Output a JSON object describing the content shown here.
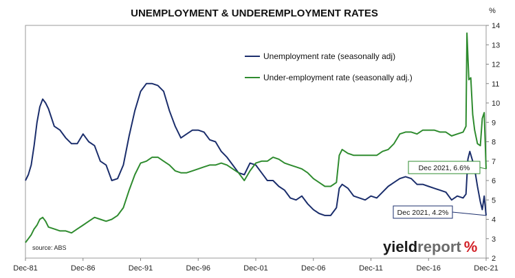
{
  "chart_data": {
    "type": "line",
    "title": "UNEMPLOYMENT & UNDEREMPLOYMENT RATES",
    "y_unit_label": "%",
    "y_axis_side": "right",
    "ylim": [
      2,
      14
    ],
    "y_ticks": [
      2,
      3,
      4,
      5,
      6,
      7,
      8,
      9,
      10,
      11,
      12,
      13,
      14
    ],
    "xlim": [
      "Dec-81",
      "Dec-21"
    ],
    "x_tick_labels": [
      "Dec-81",
      "Dec-86",
      "Dec-91",
      "Dec-96",
      "Dec-01",
      "Dec-06",
      "Dec-11",
      "Dec-16",
      "Dec-21"
    ],
    "grid": false,
    "legend_position": "top-right",
    "source_note": "source: ABS",
    "brand": {
      "part1": "yield",
      "part2": "report",
      "symbol": "%"
    },
    "colors": {
      "unemployment": "#1a2d6b",
      "underemployment": "#2e8b2e",
      "axis": "#808080"
    },
    "annotations": [
      {
        "text": "Dec 2021, 6.6%",
        "series": "Under-employment rate (seasonally adj.)",
        "x": "2021-12",
        "y": 6.6
      },
      {
        "text": "Dec 2021, 4.2%",
        "series": "Unemployment rate (seasonally adj)",
        "x": "2021-12",
        "y": 4.2
      }
    ],
    "series": [
      {
        "name": "Unemployment rate (seasonally adj)",
        "color": "#1a2d6b",
        "points": [
          [
            "1981-12",
            6.0
          ],
          [
            "1982-03",
            6.3
          ],
          [
            "1982-06",
            6.8
          ],
          [
            "1982-09",
            7.8
          ],
          [
            "1982-12",
            9.0
          ],
          [
            "1983-03",
            9.8
          ],
          [
            "1983-06",
            10.2
          ],
          [
            "1983-09",
            10.0
          ],
          [
            "1983-12",
            9.7
          ],
          [
            "1984-06",
            8.8
          ],
          [
            "1984-12",
            8.6
          ],
          [
            "1985-06",
            8.2
          ],
          [
            "1985-12",
            7.9
          ],
          [
            "1986-06",
            7.9
          ],
          [
            "1986-12",
            8.4
          ],
          [
            "1987-06",
            8.0
          ],
          [
            "1987-12",
            7.8
          ],
          [
            "1988-06",
            7.0
          ],
          [
            "1988-12",
            6.8
          ],
          [
            "1989-06",
            6.0
          ],
          [
            "1989-12",
            6.1
          ],
          [
            "1990-06",
            6.8
          ],
          [
            "1990-12",
            8.3
          ],
          [
            "1991-06",
            9.6
          ],
          [
            "1991-12",
            10.6
          ],
          [
            "1992-06",
            11.0
          ],
          [
            "1992-12",
            11.0
          ],
          [
            "1993-06",
            10.9
          ],
          [
            "1993-12",
            10.6
          ],
          [
            "1994-06",
            9.6
          ],
          [
            "1994-12",
            8.8
          ],
          [
            "1995-06",
            8.2
          ],
          [
            "1995-12",
            8.4
          ],
          [
            "1996-06",
            8.6
          ],
          [
            "1996-12",
            8.6
          ],
          [
            "1997-06",
            8.5
          ],
          [
            "1997-12",
            8.1
          ],
          [
            "1998-06",
            8.0
          ],
          [
            "1998-12",
            7.5
          ],
          [
            "1999-06",
            7.2
          ],
          [
            "1999-12",
            6.8
          ],
          [
            "2000-06",
            6.4
          ],
          [
            "2000-12",
            6.3
          ],
          [
            "2001-06",
            6.9
          ],
          [
            "2001-12",
            6.8
          ],
          [
            "2002-06",
            6.4
          ],
          [
            "2002-12",
            6.0
          ],
          [
            "2003-06",
            6.0
          ],
          [
            "2003-12",
            5.7
          ],
          [
            "2004-06",
            5.5
          ],
          [
            "2004-12",
            5.1
          ],
          [
            "2005-06",
            5.0
          ],
          [
            "2005-12",
            5.2
          ],
          [
            "2006-06",
            4.8
          ],
          [
            "2006-12",
            4.5
          ],
          [
            "2007-06",
            4.3
          ],
          [
            "2007-12",
            4.2
          ],
          [
            "2008-06",
            4.2
          ],
          [
            "2008-12",
            4.6
          ],
          [
            "2009-03",
            5.6
          ],
          [
            "2009-06",
            5.8
          ],
          [
            "2009-12",
            5.6
          ],
          [
            "2010-06",
            5.2
          ],
          [
            "2010-12",
            5.1
          ],
          [
            "2011-06",
            5.0
          ],
          [
            "2011-12",
            5.2
          ],
          [
            "2012-06",
            5.1
          ],
          [
            "2012-12",
            5.4
          ],
          [
            "2013-06",
            5.7
          ],
          [
            "2013-12",
            5.9
          ],
          [
            "2014-06",
            6.1
          ],
          [
            "2014-12",
            6.2
          ],
          [
            "2015-06",
            6.1
          ],
          [
            "2015-12",
            5.8
          ],
          [
            "2016-06",
            5.8
          ],
          [
            "2016-12",
            5.7
          ],
          [
            "2017-06",
            5.6
          ],
          [
            "2017-12",
            5.5
          ],
          [
            "2018-06",
            5.4
          ],
          [
            "2018-12",
            5.0
          ],
          [
            "2019-06",
            5.2
          ],
          [
            "2019-12",
            5.1
          ],
          [
            "2020-03",
            5.3
          ],
          [
            "2020-05",
            7.1
          ],
          [
            "2020-07",
            7.5
          ],
          [
            "2020-10",
            7.0
          ],
          [
            "2020-12",
            6.6
          ],
          [
            "2021-03",
            5.7
          ],
          [
            "2021-06",
            4.9
          ],
          [
            "2021-08",
            4.5
          ],
          [
            "2021-10",
            5.2
          ],
          [
            "2021-12",
            4.2
          ]
        ]
      },
      {
        "name": "Under-employment rate (seasonally adj.)",
        "color": "#2e8b2e",
        "points": [
          [
            "1981-12",
            2.8
          ],
          [
            "1982-03",
            3.0
          ],
          [
            "1982-06",
            3.2
          ],
          [
            "1982-09",
            3.5
          ],
          [
            "1982-12",
            3.7
          ],
          [
            "1983-03",
            4.0
          ],
          [
            "1983-06",
            4.1
          ],
          [
            "1983-09",
            3.9
          ],
          [
            "1983-12",
            3.6
          ],
          [
            "1984-06",
            3.5
          ],
          [
            "1984-12",
            3.4
          ],
          [
            "1985-06",
            3.4
          ],
          [
            "1985-12",
            3.3
          ],
          [
            "1986-06",
            3.5
          ],
          [
            "1986-12",
            3.7
          ],
          [
            "1987-06",
            3.9
          ],
          [
            "1987-12",
            4.1
          ],
          [
            "1988-06",
            4.0
          ],
          [
            "1988-12",
            3.9
          ],
          [
            "1989-06",
            4.0
          ],
          [
            "1989-12",
            4.2
          ],
          [
            "1990-06",
            4.6
          ],
          [
            "1990-12",
            5.5
          ],
          [
            "1991-06",
            6.3
          ],
          [
            "1991-12",
            6.9
          ],
          [
            "1992-06",
            7.0
          ],
          [
            "1992-12",
            7.2
          ],
          [
            "1993-06",
            7.2
          ],
          [
            "1993-12",
            7.0
          ],
          [
            "1994-06",
            6.8
          ],
          [
            "1994-12",
            6.5
          ],
          [
            "1995-06",
            6.4
          ],
          [
            "1995-12",
            6.4
          ],
          [
            "1996-06",
            6.5
          ],
          [
            "1996-12",
            6.6
          ],
          [
            "1997-06",
            6.7
          ],
          [
            "1997-12",
            6.8
          ],
          [
            "1998-06",
            6.8
          ],
          [
            "1998-12",
            6.9
          ],
          [
            "1999-06",
            6.8
          ],
          [
            "1999-12",
            6.6
          ],
          [
            "2000-06",
            6.4
          ],
          [
            "2000-12",
            6.0
          ],
          [
            "2001-06",
            6.5
          ],
          [
            "2001-12",
            6.9
          ],
          [
            "2002-06",
            7.0
          ],
          [
            "2002-12",
            7.0
          ],
          [
            "2003-06",
            7.2
          ],
          [
            "2003-12",
            7.1
          ],
          [
            "2004-06",
            6.9
          ],
          [
            "2004-12",
            6.8
          ],
          [
            "2005-06",
            6.7
          ],
          [
            "2005-12",
            6.6
          ],
          [
            "2006-06",
            6.4
          ],
          [
            "2006-12",
            6.1
          ],
          [
            "2007-06",
            5.9
          ],
          [
            "2007-12",
            5.7
          ],
          [
            "2008-06",
            5.7
          ],
          [
            "2008-12",
            5.9
          ],
          [
            "2009-03",
            7.3
          ],
          [
            "2009-06",
            7.6
          ],
          [
            "2009-12",
            7.4
          ],
          [
            "2010-06",
            7.3
          ],
          [
            "2010-12",
            7.3
          ],
          [
            "2011-06",
            7.3
          ],
          [
            "2011-12",
            7.3
          ],
          [
            "2012-06",
            7.3
          ],
          [
            "2012-12",
            7.5
          ],
          [
            "2013-06",
            7.6
          ],
          [
            "2013-12",
            7.9
          ],
          [
            "2014-06",
            8.4
          ],
          [
            "2014-12",
            8.5
          ],
          [
            "2015-06",
            8.5
          ],
          [
            "2015-12",
            8.4
          ],
          [
            "2016-06",
            8.6
          ],
          [
            "2016-12",
            8.6
          ],
          [
            "2017-06",
            8.6
          ],
          [
            "2017-12",
            8.5
          ],
          [
            "2018-06",
            8.5
          ],
          [
            "2018-12",
            8.3
          ],
          [
            "2019-06",
            8.4
          ],
          [
            "2019-12",
            8.5
          ],
          [
            "2020-03",
            8.8
          ],
          [
            "2020-04",
            13.6
          ],
          [
            "2020-06",
            11.2
          ],
          [
            "2020-08",
            11.3
          ],
          [
            "2020-10",
            9.4
          ],
          [
            "2020-12",
            8.6
          ],
          [
            "2021-03",
            7.9
          ],
          [
            "2021-06",
            7.8
          ],
          [
            "2021-08",
            9.2
          ],
          [
            "2021-10",
            9.5
          ],
          [
            "2021-12",
            6.6
          ]
        ]
      }
    ]
  }
}
